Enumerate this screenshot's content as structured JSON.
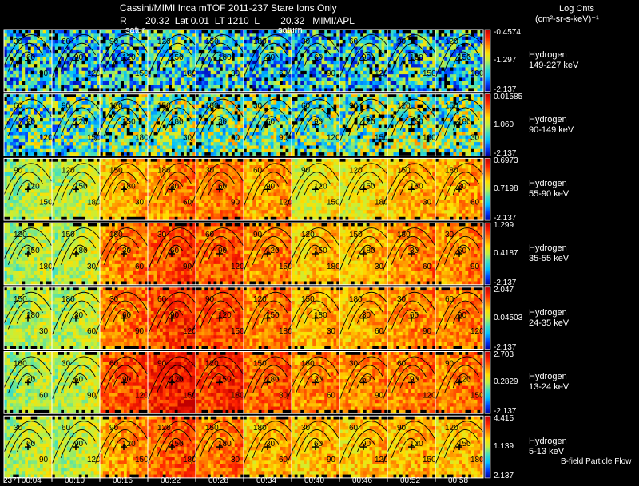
{
  "header": {
    "title_line": "Cassini/MIMI Inca mTOF  2011-237   Stare   Ions Only",
    "info_line": "R       20.32  Lat 0.01  LT 1210  L        20.32   MIMI/APL",
    "units_title": "Log Cnts",
    "units_sub": "(cm²-sr-s-keV)⁻¹",
    "saturn_label": "satur",
    "saturn_label_2": "saturn"
  },
  "footer": {
    "flow_label": "B-field Particle Flow"
  },
  "chart_data": {
    "type": "heatmap",
    "xlabel": "",
    "ylabel": "",
    "time_ticks": [
      "237T00:04",
      "00:10",
      "00:16",
      "00:22",
      "00:28",
      "00:34",
      "00:40",
      "00:46",
      "00:52",
      "00:58"
    ],
    "contour_labels": [
      "30",
      "60",
      "90",
      "120",
      "150",
      "180"
    ],
    "colorscale": [
      "#0000a0",
      "#0040ff",
      "#00c0ff",
      "#40e0c0",
      "#c0f040",
      "#ffe000",
      "#ff8000",
      "#ff2000",
      "#c00000"
    ],
    "channels": [
      {
        "species": "Hydrogen",
        "energy": "149-227 keV",
        "cb_max": "-0.4574",
        "cb_mid": "-1.297",
        "cb_min": "-2.137",
        "frame_levels": [
          0.32,
          0.3,
          0.3,
          0.35,
          0.32,
          0.3,
          0.3,
          0.32,
          0.33,
          0.32
        ]
      },
      {
        "species": "Hydrogen",
        "energy": "90-149 keV",
        "cb_max": "0.01585",
        "cb_mid": "1.060",
        "cb_min": "-2.137",
        "frame_levels": [
          0.38,
          0.4,
          0.42,
          0.45,
          0.45,
          0.45,
          0.42,
          0.42,
          0.45,
          0.45
        ]
      },
      {
        "species": "Hydrogen",
        "energy": "55-90 keV",
        "cb_max": "0.6973",
        "cb_mid": "0.7198",
        "cb_min": "-2.137",
        "frame_levels": [
          0.5,
          0.52,
          0.68,
          0.74,
          0.76,
          0.7,
          0.58,
          0.6,
          0.68,
          0.7
        ]
      },
      {
        "species": "Hydrogen",
        "energy": "35-55 keV",
        "cb_max": "1.299",
        "cb_mid": "0.4187",
        "cb_min": "-2.137",
        "frame_levels": [
          0.5,
          0.52,
          0.75,
          0.82,
          0.8,
          0.74,
          0.66,
          0.66,
          0.74,
          0.74
        ]
      },
      {
        "species": "Hydrogen",
        "energy": "24-35 keV",
        "cb_max": "2.047",
        "cb_mid": "0.04503",
        "cb_min": "-2.137",
        "frame_levels": [
          0.5,
          0.52,
          0.76,
          0.84,
          0.82,
          0.76,
          0.68,
          0.68,
          0.74,
          0.74
        ]
      },
      {
        "species": "Hydrogen",
        "energy": "13-24 keV",
        "cb_max": "2.703",
        "cb_mid": "0.2829",
        "cb_min": "-2.137",
        "frame_levels": [
          0.5,
          0.52,
          0.82,
          0.9,
          0.86,
          0.8,
          0.74,
          0.74,
          0.76,
          0.76
        ]
      },
      {
        "species": "Hydrogen",
        "energy": "5-13 keV",
        "cb_max": "4.415",
        "cb_mid": "1.139",
        "cb_min": "2.137",
        "frame_levels": [
          0.52,
          0.52,
          0.72,
          0.8,
          0.76,
          0.68,
          0.66,
          0.66,
          0.68,
          0.66
        ]
      }
    ]
  }
}
